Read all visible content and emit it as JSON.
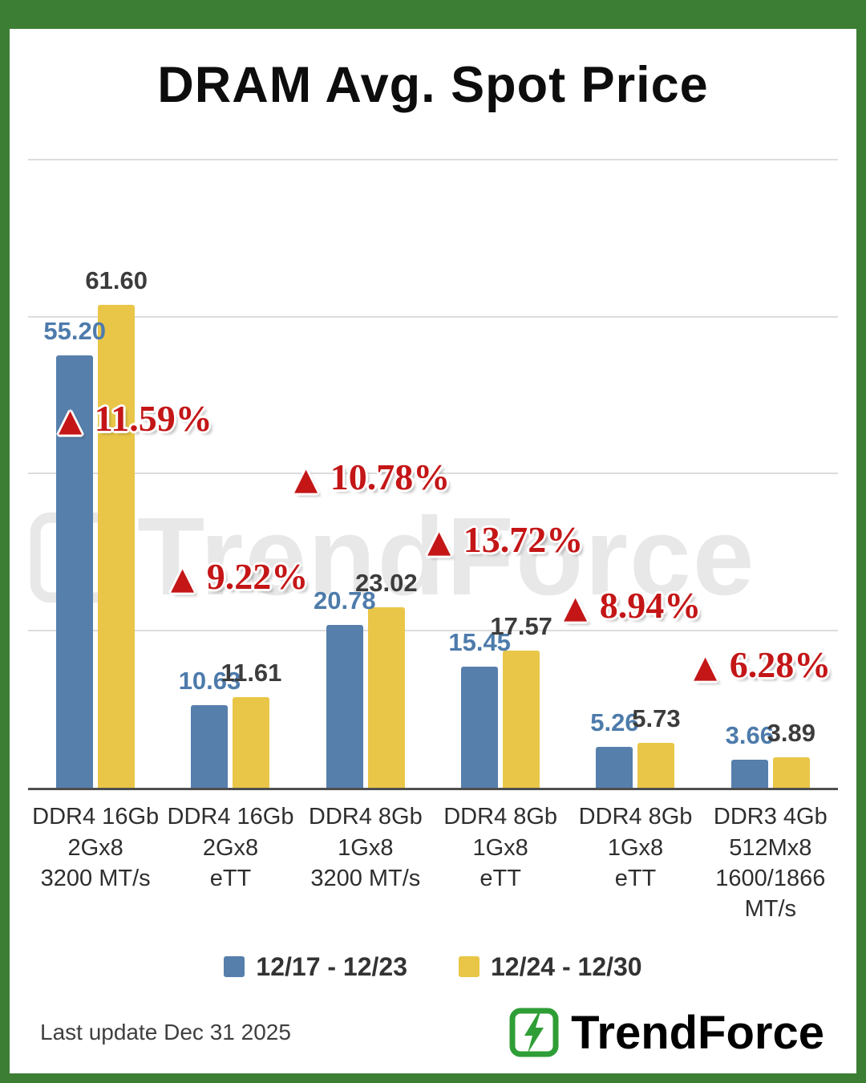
{
  "page": {
    "title": "DRAM Avg. Spot Price",
    "watermark": "TrendForce",
    "last_update": "Last update Dec 31  2025",
    "brand": "TrendForce"
  },
  "colors": {
    "frame_green": "#3d7e35",
    "annotation_red": "#c41617",
    "logo_green": "#2f9e36",
    "axis": "#4f4f4f",
    "gridline": "#dcdcdc"
  },
  "chart_data": {
    "type": "bar",
    "title": "DRAM Avg. Spot Price",
    "ylim": [
      0,
      80
    ],
    "gridline_values": [
      20,
      40,
      60,
      80
    ],
    "grid": true,
    "legend_position": "bottom",
    "categories": [
      [
        "DDR4 16Gb",
        "2Gx8",
        "3200 MT/s"
      ],
      [
        "DDR4 16Gb",
        "2Gx8",
        "eTT"
      ],
      [
        "DDR4 8Gb",
        "1Gx8",
        "3200 MT/s"
      ],
      [
        "DDR4 8Gb",
        "1Gx8",
        "eTT"
      ],
      [
        "DDR4 8Gb",
        "1Gx8",
        "eTT"
      ],
      [
        "DDR3 4Gb",
        "512Mx8",
        "1600/1866",
        "MT/s"
      ]
    ],
    "series": [
      {
        "name": "12/17 - 12/23",
        "color": "#567fac",
        "label_color": "#4d7bab",
        "values": [
          55.2,
          10.63,
          20.78,
          15.45,
          5.26,
          3.66
        ]
      },
      {
        "name": "12/24 - 12/30",
        "color": "#e9c647",
        "label_color": "#3c3c3c",
        "values": [
          61.6,
          11.61,
          23.02,
          17.57,
          5.73,
          3.89
        ]
      }
    ],
    "annotations": [
      {
        "arrow": "▲",
        "text": "11.59%"
      },
      {
        "arrow": "▲",
        "text": "9.22%"
      },
      {
        "arrow": "▲",
        "text": "10.78%"
      },
      {
        "arrow": "▲",
        "text": "13.72%"
      },
      {
        "arrow": "▲",
        "text": "8.94%"
      },
      {
        "arrow": "▲",
        "text": "6.28%"
      }
    ]
  }
}
